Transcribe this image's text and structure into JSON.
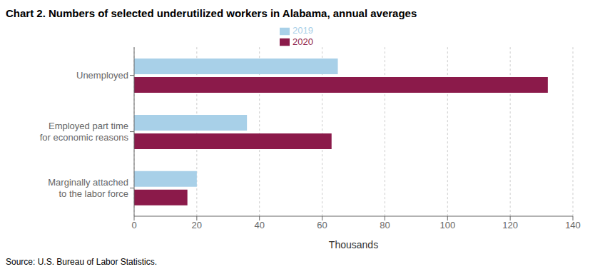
{
  "chart_data": {
    "type": "bar",
    "orientation": "horizontal",
    "title": "Chart 2. Numbers of selected underutilized workers in Alabama, annual averages",
    "categories": [
      "Unemployed",
      "Employed part time\nfor economic reasons",
      "Marginally attached\nto the labor force"
    ],
    "series": [
      {
        "name": "2019",
        "color": "#a8d0e8",
        "values": [
          65,
          36,
          20
        ]
      },
      {
        "name": "2020",
        "color": "#8b1a4a",
        "values": [
          132,
          63,
          17
        ]
      }
    ],
    "xlabel": "Thousands",
    "xlim": [
      0,
      140
    ],
    "xticks": [
      0,
      20,
      40,
      60,
      80,
      100,
      120,
      140
    ],
    "grid": true,
    "legend": "top",
    "source": "Source: U.S. Bureau of Labor Statistics."
  }
}
